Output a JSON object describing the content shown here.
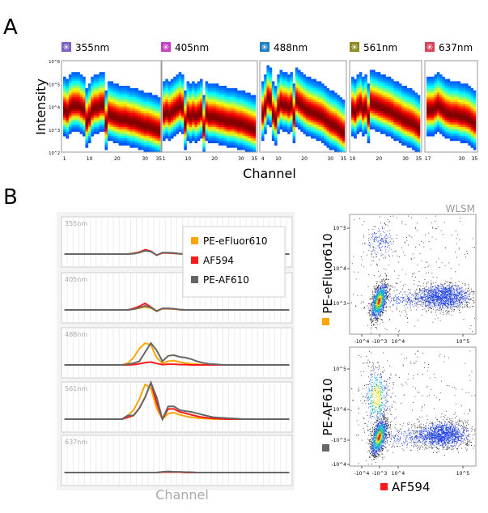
{
  "panel_a": {
    "label": "A",
    "ylabel": "Intensity",
    "xlabel": "Channel",
    "y_ticks": [
      "10^6",
      "10^5",
      "10^4",
      "10^3",
      "10^2"
    ]
  },
  "panel_b": {
    "label": "B",
    "xlabel": "Channel",
    "method_label": "WLSM",
    "legend": [
      "PE-eFluor610",
      "AF594",
      "PE-AF610"
    ]
  },
  "colors": {
    "PE-eFluor610": "#ffa500",
    "AF594": "#ff1a1a",
    "PE-AF610": "#666666"
  },
  "chart_data": [
    {
      "type": "heatmap",
      "title": "Spectral intensity vs channel per laser",
      "xlabel": "Channel",
      "ylabel": "Intensity",
      "ylim_log10": [
        2,
        6
      ],
      "panels": [
        {
          "laser": "355nm",
          "icon_color": "#7b5fc7",
          "channels": [
            1,
            35
          ],
          "x_ticks": [
            "1",
            "10",
            "20",
            "30",
            "35"
          ],
          "ridge_log10": [
            3.8,
            3.7,
            3.9,
            4.0,
            4.0,
            4.0,
            3.9,
            3.8,
            3.3,
            3.5,
            3.8,
            3.9,
            3.9,
            4.0,
            4.0,
            3.2,
            3.6,
            3.55,
            3.5,
            3.45,
            3.4,
            3.4,
            3.4,
            3.35,
            3.3,
            3.3,
            3.25,
            3.2,
            3.15,
            3.1,
            3.1,
            3.05,
            3.0,
            2.95,
            2.9
          ]
        },
        {
          "laser": "405nm",
          "icon_color": "#c43fbd",
          "channels": [
            1,
            35
          ],
          "x_ticks": [
            "1",
            "10",
            "20",
            "30",
            "35"
          ],
          "ridge_log10": [
            3.6,
            3.7,
            3.6,
            3.7,
            3.8,
            3.9,
            4.0,
            3.9,
            3.2,
            3.6,
            3.5,
            3.6,
            3.5,
            3.6,
            3.7,
            3.0,
            3.6,
            3.5,
            3.5,
            3.5,
            3.45,
            3.4,
            3.4,
            3.35,
            3.3,
            3.3,
            3.3,
            3.25,
            3.2,
            3.2,
            3.15,
            3.1,
            3.05,
            3.0,
            2.95
          ]
        },
        {
          "laser": "488nm",
          "icon_color": "#1e7fc2",
          "channels": [
            4,
            35
          ],
          "x_ticks": [
            "4",
            "10",
            "20",
            "30",
            "35"
          ],
          "ridge_log10": [
            3.6,
            3.9,
            4.3,
            4.2,
            3.6,
            3.4,
            3.9,
            4.1,
            4.0,
            4.0,
            3.9,
            4.0,
            3.5,
            4.2,
            4.1,
            4.0,
            3.9,
            3.8,
            3.75,
            3.7,
            3.65,
            3.6,
            3.55,
            3.5,
            3.4,
            3.3,
            3.2,
            3.15,
            3.1,
            3.0,
            2.9,
            2.8
          ]
        },
        {
          "laser": "561nm",
          "icon_color": "#8a8a1e",
          "channels": [
            10,
            35
          ],
          "x_ticks": [
            "10",
            "20",
            "30",
            "35"
          ],
          "ridge_log10": [
            3.8,
            3.7,
            3.9,
            4.0,
            3.8,
            3.9,
            3.5,
            4.1,
            4.05,
            4.0,
            3.95,
            3.9,
            3.85,
            3.8,
            3.75,
            3.7,
            3.6,
            3.55,
            3.5,
            3.4,
            3.35,
            3.3,
            3.25,
            3.2,
            3.1,
            3.0
          ]
        },
        {
          "laser": "637nm",
          "icon_color": "#d9405a",
          "channels": [
            17,
            35
          ],
          "x_ticks": [
            "17",
            "30",
            "35"
          ],
          "ridge_log10": [
            3.8,
            3.8,
            3.8,
            3.9,
            4.0,
            3.9,
            3.8,
            3.7,
            3.65,
            3.6,
            3.6,
            3.6,
            3.55,
            3.5,
            3.5,
            3.45,
            3.4,
            3.3,
            3.2
          ]
        }
      ]
    },
    {
      "type": "line",
      "xlabel": "Channel",
      "x_count": 40,
      "legend_position": "top-right",
      "series_names": [
        "PE-eFluor610",
        "AF594",
        "PE-AF610"
      ],
      "panels": [
        {
          "laser": "355nm",
          "series": [
            {
              "name": "PE-eFluor610",
              "values": [
                0,
                0,
                0,
                0,
                0,
                0,
                0,
                0,
                0,
                0,
                0,
                0,
                0.02,
                0.06,
                0.1,
                0.08,
                -0.03,
                0.03,
                0.03,
                0.02,
                0.01,
                0,
                0,
                0,
                0,
                0,
                0,
                0,
                0,
                0,
                0,
                0,
                0,
                0,
                0,
                0,
                0,
                0,
                0,
                0
              ]
            },
            {
              "name": "AF594",
              "values": [
                0,
                0,
                0,
                0,
                0,
                0,
                0,
                0,
                0,
                0,
                0,
                0,
                0.02,
                0.05,
                0.12,
                0.08,
                -0.03,
                0.03,
                0.03,
                0.02,
                0.01,
                0,
                0,
                0,
                0,
                0,
                0,
                0,
                0,
                0,
                0,
                0,
                0,
                0,
                0,
                0,
                0,
                0,
                0,
                0
              ]
            },
            {
              "name": "PE-AF610",
              "values": [
                0,
                0,
                0,
                0,
                0,
                0,
                0,
                0,
                0,
                0,
                0,
                0,
                0.01,
                0.04,
                0.09,
                0.07,
                -0.03,
                0.04,
                0.04,
                0.03,
                0.01,
                0,
                0,
                0,
                0,
                0,
                0,
                0,
                0,
                0,
                0,
                0,
                0,
                0,
                0,
                0,
                0,
                0,
                0,
                0
              ]
            }
          ]
        },
        {
          "laser": "405nm",
          "series": [
            {
              "name": "PE-eFluor610",
              "values": [
                0,
                0,
                0,
                0,
                0,
                0,
                0,
                0,
                0,
                0,
                0,
                0,
                0.02,
                0.05,
                0.08,
                0.05,
                -0.04,
                0.03,
                0.03,
                0.02,
                0.01,
                0,
                0,
                0,
                0,
                0,
                0,
                0,
                0,
                0,
                0,
                0,
                0,
                0,
                0,
                0,
                0,
                0,
                0,
                0
              ]
            },
            {
              "name": "AF594",
              "values": [
                0,
                0,
                0,
                0,
                0,
                0,
                0,
                0,
                0,
                0,
                0,
                0,
                0.04,
                0.1,
                0.18,
                0.08,
                -0.03,
                0.04,
                0.04,
                0.03,
                0.01,
                0,
                0,
                0,
                0,
                0,
                0,
                0,
                0,
                0,
                0,
                0,
                0,
                0,
                0,
                0,
                0,
                0,
                0,
                0
              ]
            },
            {
              "name": "PE-AF610",
              "values": [
                0,
                0,
                0,
                0,
                0,
                0,
                0,
                0,
                0,
                0,
                0,
                0,
                0.02,
                0.06,
                0.11,
                0.07,
                -0.03,
                0.04,
                0.04,
                0.03,
                0.01,
                0,
                0,
                0,
                0,
                0,
                0,
                0,
                0,
                0,
                0,
                0,
                0,
                0,
                0,
                0,
                0,
                0,
                0,
                0
              ]
            }
          ]
        },
        {
          "laser": "488nm",
          "series": [
            {
              "name": "PE-eFluor610",
              "values": [
                0,
                0,
                0,
                0,
                0,
                0,
                0,
                0,
                0,
                0,
                0,
                0.05,
                0.2,
                0.45,
                0.6,
                0.55,
                0.2,
                0.05,
                0.1,
                0.12,
                0.08,
                0.05,
                0.03,
                0.02,
                0.01,
                0,
                0,
                0,
                0,
                0,
                0,
                0,
                0,
                0,
                0,
                0,
                0,
                0,
                0,
                0
              ]
            },
            {
              "name": "AF594",
              "values": [
                0,
                0,
                0,
                0,
                0,
                0,
                0,
                0,
                0,
                0,
                0,
                0,
                0.01,
                0.03,
                0.06,
                0.08,
                0.04,
                0.01,
                0.02,
                0.02,
                0.01,
                0.01,
                0,
                0,
                0,
                0,
                0,
                0,
                0,
                0,
                0,
                0,
                0,
                0,
                0,
                0,
                0,
                0,
                0,
                0
              ]
            },
            {
              "name": "PE-AF610",
              "values": [
                0,
                0,
                0,
                0,
                0,
                0,
                0,
                0,
                0,
                0,
                0,
                0.02,
                0.05,
                0.1,
                0.35,
                0.6,
                0.4,
                0.1,
                0.25,
                0.27,
                0.22,
                0.2,
                0.16,
                0.1,
                0.06,
                0.03,
                0.02,
                0.01,
                0,
                0,
                0,
                0,
                0,
                0,
                0,
                0,
                0,
                0,
                0,
                0
              ]
            }
          ]
        },
        {
          "laser": "561nm",
          "series": [
            {
              "name": "PE-eFluor610",
              "values": [
                0,
                0,
                0,
                0,
                0,
                0,
                0,
                0,
                0,
                0,
                0,
                0.1,
                0.25,
                0.55,
                0.95,
                0.85,
                0.3,
                0,
                0.15,
                0.18,
                0.12,
                0.08,
                0.05,
                0.03,
                0.02,
                0.01,
                0,
                0,
                0,
                0,
                0,
                0,
                0,
                0,
                0,
                0,
                0,
                0,
                0,
                0
              ]
            },
            {
              "name": "AF594",
              "values": [
                0,
                0,
                0,
                0,
                0,
                0,
                0,
                0,
                0,
                0,
                0,
                0.05,
                0.1,
                0.3,
                0.6,
                1.0,
                0.45,
                0,
                0.28,
                0.28,
                0.2,
                0.16,
                0.12,
                0.08,
                0.05,
                0.03,
                0.02,
                0.01,
                0,
                0,
                0,
                0,
                0,
                0,
                0,
                0,
                0,
                0,
                0,
                0
              ]
            },
            {
              "name": "PE-AF610",
              "values": [
                0,
                0,
                0,
                0,
                0,
                0,
                0,
                0,
                0,
                0,
                0,
                0.1,
                0.1,
                0.3,
                0.6,
                1.0,
                0.6,
                0,
                0.35,
                0.35,
                0.25,
                0.22,
                0.2,
                0.16,
                0.12,
                0.08,
                0.05,
                0.04,
                0.03,
                0.02,
                0.01,
                0,
                0,
                0,
                0,
                0,
                0,
                0,
                0,
                0
              ]
            }
          ]
        },
        {
          "laser": "637nm",
          "series": [
            {
              "name": "PE-eFluor610",
              "values": [
                0,
                0,
                0,
                0,
                0,
                0,
                0,
                0,
                0,
                0,
                0,
                0,
                0,
                0,
                0,
                0,
                0,
                0.01,
                0.01,
                0.01,
                0.01,
                0.01,
                0,
                0,
                0,
                0,
                0,
                0,
                0,
                0,
                0,
                0,
                0,
                0,
                0,
                0,
                0,
                0,
                0,
                0
              ]
            },
            {
              "name": "AF594",
              "values": [
                0,
                0,
                0,
                0,
                0,
                0,
                0,
                0,
                0,
                0,
                0,
                0,
                0,
                0,
                0,
                0,
                0,
                0.01,
                0.01,
                0.01,
                0.01,
                0,
                0,
                0,
                0,
                0,
                0,
                0,
                0,
                0,
                0,
                0,
                0,
                0,
                0,
                0,
                0,
                0,
                0,
                0
              ]
            },
            {
              "name": "PE-AF610",
              "values": [
                0,
                0,
                0,
                0,
                0,
                0,
                0,
                0,
                0,
                0,
                0,
                0,
                0,
                0,
                0,
                0,
                0,
                0.02,
                0.03,
                0.02,
                0.02,
                0.01,
                0.01,
                0,
                0,
                0,
                0,
                0,
                0,
                0,
                0,
                0,
                0,
                0,
                0,
                0,
                0,
                0,
                0,
                0
              ]
            }
          ]
        }
      ]
    },
    {
      "type": "scatter",
      "title": "WLSM",
      "xlabel": "AF594",
      "ylabel": "PE-eFluor610",
      "x_ticks": [
        "-10^4",
        "-10^3",
        "10^4",
        "10^5"
      ],
      "y_ticks": [
        "10^5",
        "10^4",
        "-10^3"
      ],
      "scale": "biexponential"
    },
    {
      "type": "scatter",
      "xlabel": "AF594",
      "ylabel": "PE-AF610",
      "x_ticks": [
        "-10^4",
        "-10^3",
        "10^4",
        "10^5"
      ],
      "y_ticks": [
        "10^5",
        "10^4",
        "-10^3",
        "-10^4"
      ],
      "scale": "biexponential"
    }
  ]
}
